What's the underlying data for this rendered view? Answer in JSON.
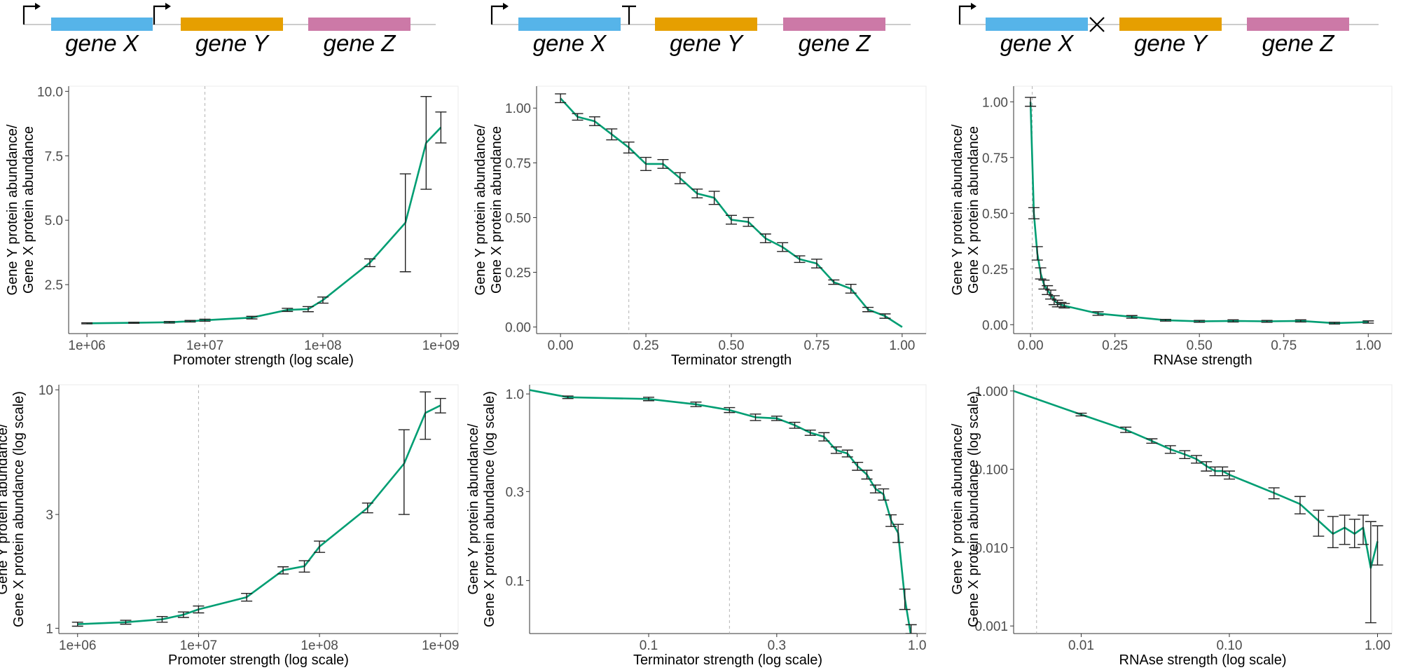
{
  "colors": {
    "series": "#009e73",
    "gene_x": "#56b4e9",
    "gene_y": "#e69f00",
    "gene_z": "#cc79a7",
    "backbone": "#cccccc",
    "errorbar": "#222222",
    "vline": "#b3b3b3"
  },
  "schematics": [
    {
      "element": "promoter",
      "genes": [
        "gene X",
        "gene Y",
        "gene Z"
      ]
    },
    {
      "element": "terminator",
      "genes": [
        "gene X",
        "gene Y",
        "gene Z"
      ]
    },
    {
      "element": "rnase-cut",
      "genes": [
        "gene X",
        "gene Y",
        "gene Z"
      ]
    }
  ],
  "chart_data": [
    {
      "type": "line",
      "id": "promoter-linear",
      "xlabel": "Promoter strength (log scale)",
      "ylabel": [
        "Gene Y protein abundance/",
        "Gene X protein abundance"
      ],
      "xscale": "log",
      "yscale": "linear",
      "xlim": [
        700000,
        1400000000
      ],
      "ylim": [
        0.6,
        10.2
      ],
      "xticks": [
        1000000,
        10000000,
        100000000,
        1000000000
      ],
      "xtick_labels": [
        "1e+06",
        "1e+07",
        "1e+08",
        "1e+09"
      ],
      "yticks": [
        2.5,
        5.0,
        7.5,
        10.0
      ],
      "ytick_labels": [
        "2.5",
        "5.0",
        "7.5",
        "10.0"
      ],
      "vline": 10000000,
      "x": [
        1000000,
        2500000,
        5000000,
        7500000,
        10000000,
        25000000,
        50000000,
        75000000,
        100000000,
        250000000,
        500000000,
        750000000,
        1000000000
      ],
      "y": [
        1.0,
        1.02,
        1.04,
        1.08,
        1.12,
        1.22,
        1.52,
        1.55,
        1.9,
        3.35,
        4.9,
        8.0,
        8.6
      ],
      "err": [
        0.02,
        0.02,
        0.03,
        0.03,
        0.04,
        0.05,
        0.06,
        0.1,
        0.12,
        0.15,
        1.9,
        1.8,
        0.6
      ],
      "grid": false
    },
    {
      "type": "line",
      "id": "terminator-linear",
      "xlabel": "Terminator strength",
      "ylabel": [
        "Gene Y protein abundance/",
        "Gene X protein abundance"
      ],
      "xscale": "linear",
      "yscale": "linear",
      "xlim": [
        -0.07,
        1.07
      ],
      "ylim": [
        -0.03,
        1.1
      ],
      "xticks": [
        0,
        0.25,
        0.5,
        0.75,
        1.0
      ],
      "xtick_labels": [
        "0.00",
        "0.25",
        "0.50",
        "0.75",
        "1.00"
      ],
      "yticks": [
        0,
        0.25,
        0.5,
        0.75,
        1.0
      ],
      "ytick_labels": [
        "0.00",
        "0.25",
        "0.50",
        "0.75",
        "1.00"
      ],
      "vline": 0.2,
      "x": [
        0.0,
        0.05,
        0.1,
        0.15,
        0.2,
        0.25,
        0.3,
        0.35,
        0.4,
        0.45,
        0.5,
        0.55,
        0.6,
        0.65,
        0.7,
        0.75,
        0.8,
        0.85,
        0.9,
        0.95,
        1.0
      ],
      "y": [
        1.045,
        0.96,
        0.94,
        0.88,
        0.82,
        0.745,
        0.745,
        0.68,
        0.61,
        0.59,
        0.49,
        0.48,
        0.405,
        0.365,
        0.31,
        0.29,
        0.205,
        0.175,
        0.08,
        0.05,
        0.0
      ],
      "err": [
        0.02,
        0.015,
        0.02,
        0.025,
        0.025,
        0.03,
        0.02,
        0.025,
        0.02,
        0.03,
        0.02,
        0.02,
        0.02,
        0.02,
        0.015,
        0.02,
        0.01,
        0.02,
        0.01,
        0.01,
        0.0
      ],
      "grid": false
    },
    {
      "type": "line",
      "id": "rnase-linear",
      "xlabel": "RNAse strength",
      "ylabel": [
        "Gene Y protein abundance/",
        "Gene X protein abundance"
      ],
      "xscale": "linear",
      "yscale": "linear",
      "xlim": [
        -0.05,
        1.07
      ],
      "ylim": [
        -0.04,
        1.07
      ],
      "xticks": [
        0,
        0.25,
        0.5,
        0.75,
        1.0
      ],
      "xtick_labels": [
        "0.00",
        "0.25",
        "0.50",
        "0.75",
        "1.00"
      ],
      "yticks": [
        0,
        0.25,
        0.5,
        0.75,
        1.0
      ],
      "ytick_labels": [
        "0.00",
        "0.25",
        "0.50",
        "0.75",
        "1.00"
      ],
      "vline": 0.005,
      "x": [
        0.0,
        0.01,
        0.02,
        0.03,
        0.04,
        0.05,
        0.06,
        0.07,
        0.08,
        0.09,
        0.1,
        0.2,
        0.3,
        0.4,
        0.5,
        0.6,
        0.7,
        0.8,
        0.9,
        1.0
      ],
      "y": [
        1.0,
        0.5,
        0.32,
        0.23,
        0.18,
        0.155,
        0.135,
        0.11,
        0.095,
        0.09,
        0.085,
        0.05,
        0.035,
        0.02,
        0.015,
        0.017,
        0.015,
        0.017,
        0.007,
        0.012
      ],
      "err": [
        0.02,
        0.025,
        0.03,
        0.025,
        0.02,
        0.02,
        0.02,
        0.02,
        0.015,
        0.01,
        0.01,
        0.008,
        0.006,
        0.004,
        0.004,
        0.005,
        0.004,
        0.005,
        0.004,
        0.005
      ],
      "grid": false
    },
    {
      "type": "line",
      "id": "promoter-log",
      "xlabel": "Promoter strength (log scale)",
      "ylabel": [
        "Gene Y protein abundance/",
        "Gene X protein abundance (log scale)"
      ],
      "xscale": "log",
      "yscale": "log",
      "xlim": [
        700000,
        1400000000
      ],
      "ylim": [
        0.95,
        10.5
      ],
      "xticks": [
        1000000,
        10000000,
        100000000,
        1000000000
      ],
      "xtick_labels": [
        "1e+06",
        "1e+07",
        "1e+08",
        "1e+09"
      ],
      "yticks": [
        1,
        3,
        10
      ],
      "ytick_labels": [
        "1",
        "3",
        "10"
      ],
      "vline": 10000000,
      "x": [
        1000000,
        2500000,
        5000000,
        7500000,
        10000000,
        25000000,
        50000000,
        75000000,
        100000000,
        250000000,
        500000000,
        750000000,
        1000000000
      ],
      "y": [
        1.04,
        1.06,
        1.09,
        1.14,
        1.2,
        1.35,
        1.75,
        1.82,
        2.2,
        3.2,
        4.9,
        8.0,
        8.6
      ],
      "err": [
        0.02,
        0.02,
        0.03,
        0.03,
        0.04,
        0.05,
        0.06,
        0.1,
        0.12,
        0.15,
        1.9,
        1.8,
        0.6
      ],
      "grid": false
    },
    {
      "type": "line",
      "id": "terminator-log",
      "xlabel": "Terminator strength (log scale)",
      "ylabel": [
        "Gene Y protein abundance/",
        "Gene X protein abundance (log scale)"
      ],
      "xscale": "log",
      "yscale": "log",
      "xlim": [
        0.036,
        1.08
      ],
      "ylim": [
        0.052,
        1.12
      ],
      "xticks": [
        0.1,
        0.3,
        1.0
      ],
      "xtick_labels": [
        "0.1",
        "0.3",
        "1.0"
      ],
      "yticks": [
        0.1,
        0.3,
        1.0
      ],
      "ytick_labels": [
        "0.1",
        "0.3",
        "1.0"
      ],
      "vline": 0.2,
      "x": [
        0.036,
        0.05,
        0.1,
        0.15,
        0.2,
        0.25,
        0.3,
        0.35,
        0.4,
        0.45,
        0.5,
        0.55,
        0.6,
        0.65,
        0.7,
        0.75,
        0.8,
        0.85,
        0.9,
        0.95,
        1.0
      ],
      "y": [
        1.05,
        0.96,
        0.94,
        0.88,
        0.82,
        0.75,
        0.74,
        0.68,
        0.62,
        0.59,
        0.5,
        0.48,
        0.41,
        0.37,
        0.31,
        0.29,
        0.21,
        0.18,
        0.08,
        0.05,
        0.04
      ],
      "err": [
        0.0,
        0.015,
        0.02,
        0.025,
        0.025,
        0.03,
        0.02,
        0.025,
        0.02,
        0.03,
        0.02,
        0.02,
        0.02,
        0.02,
        0.015,
        0.02,
        0.015,
        0.02,
        0.01,
        0.008,
        0.0
      ],
      "grid": false
    },
    {
      "type": "line",
      "id": "rnase-log",
      "xlabel": "RNAse strength (log scale)",
      "ylabel": [
        "Gene Y protein abundance/",
        "Gene X protein abundance (log scale)"
      ],
      "xscale": "log",
      "yscale": "log",
      "xlim": [
        0.0035,
        1.25
      ],
      "ylim": [
        0.0008,
        1.2
      ],
      "xticks": [
        0.01,
        0.1,
        1.0
      ],
      "xtick_labels": [
        "0.01",
        "0.10",
        "1.00"
      ],
      "yticks": [
        0.001,
        0.01,
        0.1,
        1.0
      ],
      "ytick_labels": [
        "0.001",
        "0.010",
        "0.100",
        "1.000"
      ],
      "vline": 0.005,
      "x": [
        0.0035,
        0.01,
        0.02,
        0.03,
        0.04,
        0.05,
        0.06,
        0.07,
        0.08,
        0.09,
        0.1,
        0.2,
        0.3,
        0.4,
        0.5,
        0.6,
        0.7,
        0.8,
        0.9,
        1.0
      ],
      "y": [
        1.0,
        0.5,
        0.32,
        0.23,
        0.18,
        0.155,
        0.135,
        0.11,
        0.095,
        0.095,
        0.085,
        0.05,
        0.036,
        0.022,
        0.015,
        0.018,
        0.015,
        0.018,
        0.0055,
        0.012
      ],
      "err_lo": [
        0.0,
        0.02,
        0.025,
        0.015,
        0.02,
        0.018,
        0.015,
        0.015,
        0.012,
        0.012,
        0.01,
        0.008,
        0.009,
        0.008,
        0.005,
        0.007,
        0.005,
        0.007,
        0.0044,
        0.006
      ],
      "err_hi": [
        0.0,
        0.02,
        0.025,
        0.015,
        0.02,
        0.018,
        0.015,
        0.015,
        0.012,
        0.012,
        0.01,
        0.008,
        0.009,
        0.008,
        0.01,
        0.008,
        0.008,
        0.008,
        0.016,
        0.007
      ],
      "grid": false
    }
  ]
}
